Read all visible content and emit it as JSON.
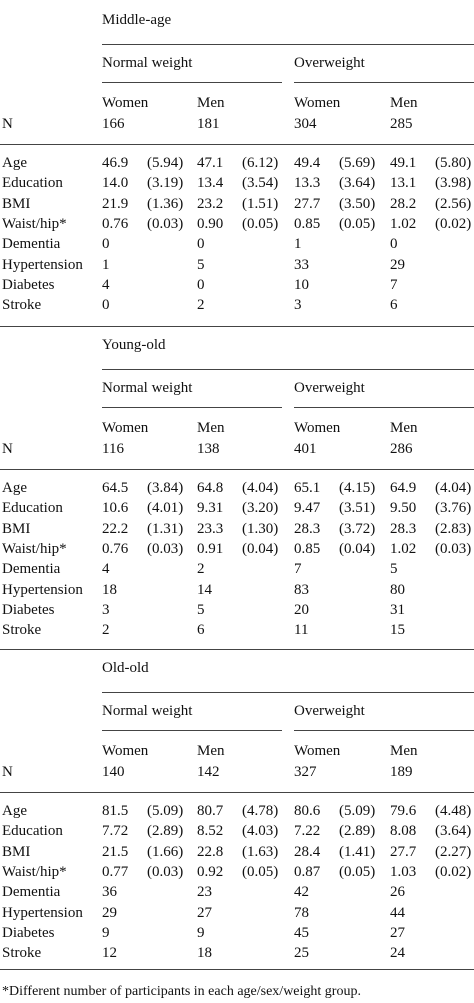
{
  "sections": [
    {
      "title": "Middle-age",
      "groups": [
        "Normal weight",
        "Overweight"
      ],
      "sexes": [
        "Women",
        "Men",
        "Women",
        "Men"
      ],
      "n_label": "N",
      "n": [
        "166",
        "181",
        "304",
        "285"
      ],
      "rows": [
        {
          "label": "Age",
          "cells": [
            [
              "46.9",
              "(5.94)"
            ],
            [
              "47.1",
              "(6.12)"
            ],
            [
              "49.4",
              "(5.69)"
            ],
            [
              "49.1",
              "(5.80)"
            ]
          ]
        },
        {
          "label": "Education",
          "cells": [
            [
              "14.0",
              "(3.19)"
            ],
            [
              "13.4",
              "(3.54)"
            ],
            [
              "13.3",
              "(3.64)"
            ],
            [
              "13.1",
              "(3.98)"
            ]
          ]
        },
        {
          "label": "BMI",
          "cells": [
            [
              "21.9",
              "(1.36)"
            ],
            [
              "23.2",
              "(1.51)"
            ],
            [
              "27.7",
              "(3.50)"
            ],
            [
              "28.2",
              "(2.56)"
            ]
          ]
        },
        {
          "label": "Waist/hip*",
          "cells": [
            [
              "0.76",
              "(0.03)"
            ],
            [
              "0.90",
              "(0.05)"
            ],
            [
              "0.85",
              "(0.05)"
            ],
            [
              "1.02",
              "(0.02)"
            ]
          ]
        },
        {
          "label": "Dementia",
          "cells": [
            [
              "0",
              ""
            ],
            [
              "0",
              ""
            ],
            [
              "1",
              ""
            ],
            [
              "0",
              ""
            ]
          ]
        },
        {
          "label": "Hypertension",
          "cells": [
            [
              "1",
              ""
            ],
            [
              "5",
              ""
            ],
            [
              "33",
              ""
            ],
            [
              "29",
              ""
            ]
          ]
        },
        {
          "label": "Diabetes",
          "cells": [
            [
              "4",
              ""
            ],
            [
              "0",
              ""
            ],
            [
              "10",
              ""
            ],
            [
              "7",
              ""
            ]
          ]
        },
        {
          "label": "Stroke",
          "cells": [
            [
              "0",
              ""
            ],
            [
              "2",
              ""
            ],
            [
              "3",
              ""
            ],
            [
              "6",
              ""
            ]
          ]
        }
      ]
    },
    {
      "title": "Young-old",
      "groups": [
        "Normal weight",
        "Overweight"
      ],
      "sexes": [
        "Women",
        "Men",
        "Women",
        "Men"
      ],
      "n_label": "N",
      "n": [
        "116",
        "138",
        "401",
        "286"
      ],
      "rows": [
        {
          "label": "Age",
          "cells": [
            [
              "64.5",
              "(3.84)"
            ],
            [
              "64.8",
              "(4.04)"
            ],
            [
              "65.1",
              "(4.15)"
            ],
            [
              "64.9",
              "(4.04)"
            ]
          ]
        },
        {
          "label": "Education",
          "cells": [
            [
              "10.6",
              "(4.01)"
            ],
            [
              "9.31",
              "(3.20)"
            ],
            [
              "9.47",
              "(3.51)"
            ],
            [
              "9.50",
              "(3.76)"
            ]
          ]
        },
        {
          "label": "BMI",
          "cells": [
            [
              "22.2",
              "(1.31)"
            ],
            [
              "23.3",
              "(1.30)"
            ],
            [
              "28.3",
              "(3.72)"
            ],
            [
              "28.3",
              "(2.83)"
            ]
          ]
        },
        {
          "label": "Waist/hip*",
          "cells": [
            [
              "0.76",
              "(0.03)"
            ],
            [
              "0.91",
              "(0.04)"
            ],
            [
              "0.85",
              "(0.04)"
            ],
            [
              "1.02",
              "(0.03)"
            ]
          ]
        },
        {
          "label": "Dementia",
          "cells": [
            [
              "4",
              ""
            ],
            [
              "2",
              ""
            ],
            [
              "7",
              ""
            ],
            [
              "5",
              ""
            ]
          ]
        },
        {
          "label": "Hypertension",
          "cells": [
            [
              "18",
              ""
            ],
            [
              "14",
              ""
            ],
            [
              "83",
              ""
            ],
            [
              "80",
              ""
            ]
          ]
        },
        {
          "label": "Diabetes",
          "cells": [
            [
              "3",
              ""
            ],
            [
              "5",
              ""
            ],
            [
              "20",
              ""
            ],
            [
              "31",
              ""
            ]
          ]
        },
        {
          "label": "Stroke",
          "cells": [
            [
              "2",
              ""
            ],
            [
              "6",
              ""
            ],
            [
              "11",
              ""
            ],
            [
              "15",
              ""
            ]
          ]
        }
      ]
    },
    {
      "title": "Old-old",
      "groups": [
        "Normal weight",
        "Overweight"
      ],
      "sexes": [
        "Women",
        "Men",
        "Women",
        "Men"
      ],
      "n_label": "N",
      "n": [
        "140",
        "142",
        "327",
        "189"
      ],
      "rows": [
        {
          "label": "Age",
          "cells": [
            [
              "81.5",
              "(5.09)"
            ],
            [
              "80.7",
              "(4.78)"
            ],
            [
              "80.6",
              "(5.09)"
            ],
            [
              "79.6",
              "(4.48)"
            ]
          ]
        },
        {
          "label": "Education",
          "cells": [
            [
              "7.72",
              "(2.89)"
            ],
            [
              "8.52",
              "(4.03)"
            ],
            [
              "7.22",
              "(2.89)"
            ],
            [
              "8.08",
              "(3.64)"
            ]
          ]
        },
        {
          "label": "BMI",
          "cells": [
            [
              "21.5",
              "(1.66)"
            ],
            [
              "22.8",
              "(1.63)"
            ],
            [
              "28.4",
              "(1.41)"
            ],
            [
              "27.7",
              "(2.27)"
            ]
          ]
        },
        {
          "label": "Waist/hip*",
          "cells": [
            [
              "0.77",
              "(0.03)"
            ],
            [
              "0.92",
              "(0.05)"
            ],
            [
              "0.87",
              "(0.05)"
            ],
            [
              "1.03",
              "(0.02)"
            ]
          ]
        },
        {
          "label": "Dementia",
          "cells": [
            [
              "36",
              ""
            ],
            [
              "23",
              ""
            ],
            [
              "42",
              ""
            ],
            [
              "26",
              ""
            ]
          ]
        },
        {
          "label": "Hypertension",
          "cells": [
            [
              "29",
              ""
            ],
            [
              "27",
              ""
            ],
            [
              "78",
              ""
            ],
            [
              "44",
              ""
            ]
          ]
        },
        {
          "label": "Diabetes",
          "cells": [
            [
              "9",
              ""
            ],
            [
              "9",
              ""
            ],
            [
              "45",
              ""
            ],
            [
              "27",
              ""
            ]
          ]
        },
        {
          "label": "Stroke",
          "cells": [
            [
              "12",
              ""
            ],
            [
              "18",
              ""
            ],
            [
              "25",
              ""
            ],
            [
              "24",
              ""
            ]
          ]
        }
      ]
    }
  ],
  "footnote": "*Different number of participants in each age/sex/weight group."
}
